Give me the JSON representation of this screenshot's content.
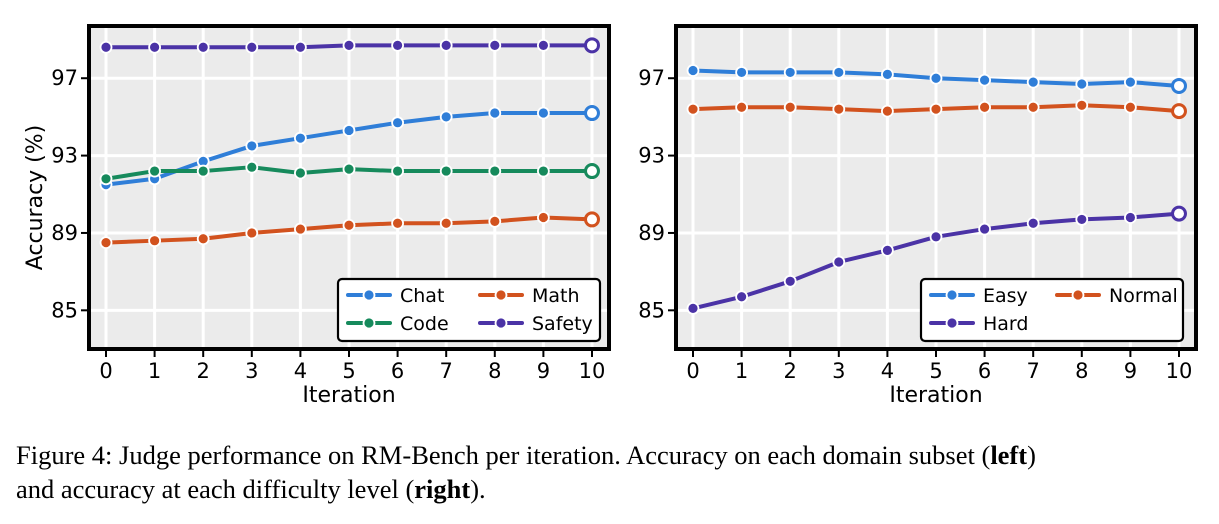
{
  "chart_data": [
    {
      "type": "line",
      "panel": "left",
      "xlabel": "Iteration",
      "ylabel": "Accuracy (%)",
      "x": [
        0,
        1,
        2,
        3,
        4,
        5,
        6,
        7,
        8,
        9,
        10
      ],
      "xticks": [
        "0",
        "1",
        "2",
        "3",
        "4",
        "5",
        "6",
        "7",
        "8",
        "9",
        "10"
      ],
      "yticks": [
        "85",
        "89",
        "93",
        "97"
      ],
      "ytick_values": [
        85,
        89,
        93,
        97
      ],
      "xlim": [
        -0.35,
        10.35
      ],
      "ylim": [
        83,
        99.7
      ],
      "grid": true,
      "legend_position": "lower-right",
      "legend_columns": 2,
      "series": [
        {
          "name": "Chat",
          "color": "#2f7ed8",
          "values": [
            91.5,
            91.8,
            92.7,
            93.5,
            93.9,
            94.3,
            94.7,
            95.0,
            95.2,
            95.2,
            95.2
          ]
        },
        {
          "name": "Code",
          "color": "#168a5c",
          "values": [
            91.8,
            92.2,
            92.2,
            92.4,
            92.1,
            92.3,
            92.2,
            92.2,
            92.2,
            92.2,
            92.2
          ]
        },
        {
          "name": "Math",
          "color": "#d2521e",
          "values": [
            88.5,
            88.6,
            88.7,
            89.0,
            89.2,
            89.4,
            89.5,
            89.5,
            89.6,
            89.8,
            89.7
          ]
        },
        {
          "name": "Safety",
          "color": "#4b33a6",
          "values": [
            98.6,
            98.6,
            98.6,
            98.6,
            98.6,
            98.7,
            98.7,
            98.7,
            98.7,
            98.7,
            98.7
          ]
        }
      ]
    },
    {
      "type": "line",
      "panel": "right",
      "xlabel": "Iteration",
      "ylabel": "",
      "x": [
        0,
        1,
        2,
        3,
        4,
        5,
        6,
        7,
        8,
        9,
        10
      ],
      "xticks": [
        "0",
        "1",
        "2",
        "3",
        "4",
        "5",
        "6",
        "7",
        "8",
        "9",
        "10"
      ],
      "yticks": [
        "85",
        "89",
        "93",
        "97"
      ],
      "ytick_values": [
        85,
        89,
        93,
        97
      ],
      "xlim": [
        -0.35,
        10.35
      ],
      "ylim": [
        83,
        99.7
      ],
      "grid": true,
      "legend_position": "lower-right",
      "legend_columns": 2,
      "series": [
        {
          "name": "Easy",
          "color": "#2f7ed8",
          "values": [
            97.4,
            97.3,
            97.3,
            97.3,
            97.2,
            97.0,
            96.9,
            96.8,
            96.7,
            96.8,
            96.6
          ]
        },
        {
          "name": "Normal",
          "color": "#d2521e",
          "values": [
            95.4,
            95.5,
            95.5,
            95.4,
            95.3,
            95.4,
            95.5,
            95.5,
            95.6,
            95.5,
            95.3
          ]
        },
        {
          "name": "Hard",
          "color": "#4b33a6",
          "values": [
            85.1,
            85.7,
            86.5,
            87.5,
            88.1,
            88.8,
            89.2,
            89.5,
            89.7,
            89.8,
            90.0
          ]
        }
      ]
    }
  ],
  "caption": {
    "prefix": "Figure 4: Judge performance on RM-Bench per iteration.  Accuracy on each domain subset (",
    "bold1": "left",
    "middle": ")\nand accuracy at each difficulty level (",
    "bold2": "right",
    "suffix": ")."
  }
}
